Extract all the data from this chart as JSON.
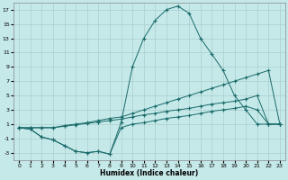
{
  "xlabel": "Humidex (Indice chaleur)",
  "background_color": "#c5e8e8",
  "grid_color": "#aacece",
  "line_color": "#1a6b6b",
  "xlim": [
    -0.5,
    23.5
  ],
  "ylim": [
    -4,
    18
  ],
  "xticks": [
    0,
    1,
    2,
    3,
    4,
    5,
    6,
    7,
    8,
    9,
    10,
    11,
    12,
    13,
    14,
    15,
    16,
    17,
    18,
    19,
    20,
    21,
    22,
    23
  ],
  "yticks": [
    -3,
    -1,
    1,
    3,
    5,
    7,
    9,
    11,
    13,
    15,
    17
  ],
  "series": [
    {
      "x": [
        0,
        1,
        2,
        3,
        4,
        5,
        6,
        7,
        8,
        9,
        10,
        11,
        12,
        13,
        14,
        15,
        16,
        17,
        18,
        19,
        20,
        21,
        22,
        23
      ],
      "y": [
        0.5,
        0.3,
        -0.8,
        -1.2,
        -2.0,
        -2.8,
        -3.0,
        -2.8,
        -3.2,
        1.2,
        9.0,
        13.0,
        15.5,
        17.0,
        17.5,
        16.5,
        13.0,
        10.8,
        8.5,
        5.0,
        3.0,
        1.0,
        1.0,
        1.0
      ]
    },
    {
      "x": [
        0,
        1,
        2,
        3,
        4,
        5,
        6,
        7,
        8,
        9,
        10,
        11,
        12,
        13,
        14,
        15,
        16,
        17,
        18,
        19,
        20,
        21,
        22,
        23
      ],
      "y": [
        0.5,
        0.5,
        0.5,
        0.5,
        0.8,
        1.0,
        1.2,
        1.5,
        1.8,
        2.0,
        2.5,
        3.0,
        3.5,
        4.0,
        4.5,
        5.0,
        5.5,
        6.0,
        6.5,
        7.0,
        7.5,
        8.0,
        8.5,
        1.0
      ]
    },
    {
      "x": [
        0,
        1,
        2,
        3,
        4,
        5,
        6,
        7,
        8,
        9,
        10,
        11,
        12,
        13,
        14,
        15,
        16,
        17,
        18,
        19,
        20,
        21,
        22,
        23
      ],
      "y": [
        0.5,
        0.5,
        0.5,
        0.5,
        0.7,
        0.9,
        1.1,
        1.3,
        1.5,
        1.7,
        2.0,
        2.3,
        2.5,
        2.8,
        3.0,
        3.2,
        3.5,
        3.8,
        4.0,
        4.2,
        4.5,
        5.0,
        1.0,
        1.0
      ]
    },
    {
      "x": [
        0,
        1,
        2,
        3,
        4,
        5,
        6,
        7,
        8,
        9,
        10,
        11,
        12,
        13,
        14,
        15,
        16,
        17,
        18,
        19,
        20,
        21,
        22,
        23
      ],
      "y": [
        0.5,
        0.3,
        -0.8,
        -1.2,
        -2.0,
        -2.8,
        -3.0,
        -2.8,
        -3.2,
        0.5,
        1.0,
        1.2,
        1.5,
        1.8,
        2.0,
        2.2,
        2.5,
        2.8,
        3.0,
        3.2,
        3.5,
        3.0,
        1.0,
        1.0
      ]
    }
  ]
}
